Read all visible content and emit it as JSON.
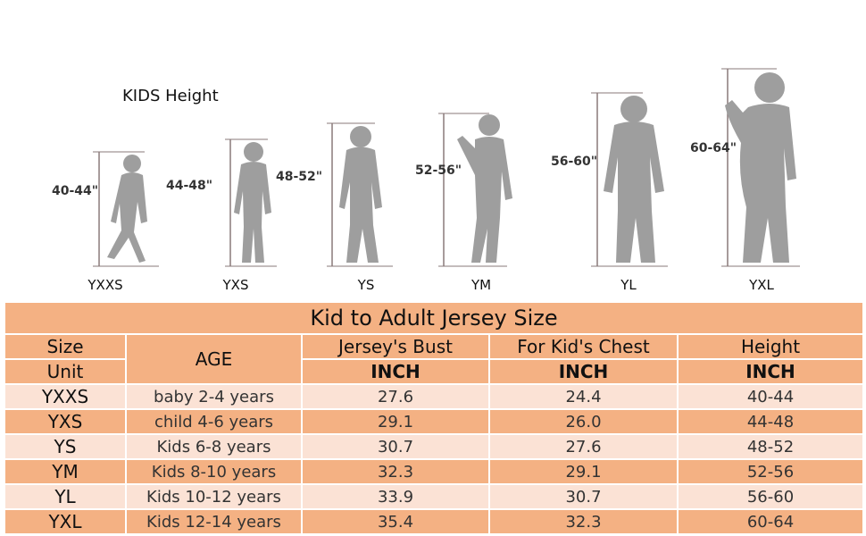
{
  "kids_height_title": "KIDS Height",
  "figures": [
    {
      "size": "YXXS",
      "height": "40-44\""
    },
    {
      "size": "YXS",
      "height": "44-48\""
    },
    {
      "size": "YS",
      "height": "48-52\""
    },
    {
      "size": "YM",
      "height": "52-56\""
    },
    {
      "size": "YL",
      "height": "56-60\""
    },
    {
      "size": "YXL",
      "height": "60-64\""
    }
  ],
  "table": {
    "title": "Kid to Adult Jersey Size",
    "headers": {
      "size": "Size",
      "unit": "Unit",
      "age": "AGE",
      "bust": "Jersey's Bust",
      "chest": "For Kid's Chest",
      "height": "Height",
      "bust_unit": "INCH",
      "chest_unit": "INCH",
      "height_unit": "INCH"
    },
    "rows": [
      {
        "size": "YXXS",
        "age": "baby 2-4 years",
        "bust": "27.6",
        "chest": "24.4",
        "height": "40-44"
      },
      {
        "size": "YXS",
        "age": "child 4-6 years",
        "bust": "29.1",
        "chest": "26.0",
        "height": "44-48"
      },
      {
        "size": "YS",
        "age": "Kids 6-8 years",
        "bust": "30.7",
        "chest": "27.6",
        "height": "48-52"
      },
      {
        "size": "YM",
        "age": "Kids 8-10 years",
        "bust": "32.3",
        "chest": "29.1",
        "height": "52-56"
      },
      {
        "size": "YL",
        "age": "Kids 10-12 years",
        "bust": "33.9",
        "chest": "30.7",
        "height": "56-60"
      },
      {
        "size": "YXL",
        "age": "Kids 12-14 years",
        "bust": "35.4",
        "chest": "32.3",
        "height": "60-64"
      }
    ]
  },
  "colors": {
    "dark_row": "#f4b183",
    "light_row": "#fbe2d5",
    "silhouette": "#9e9e9e",
    "ruler": "#8a7a7a"
  }
}
